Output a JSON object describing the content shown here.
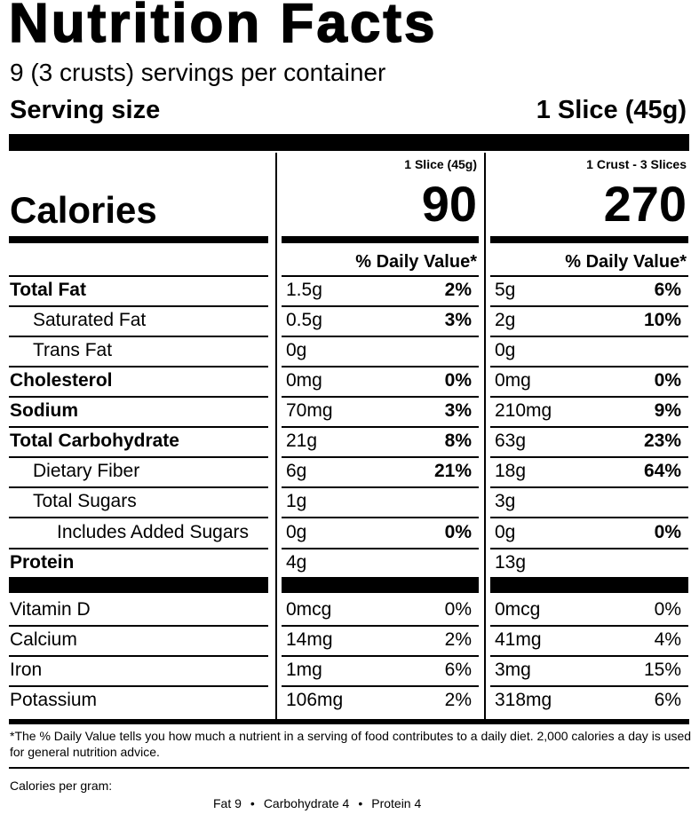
{
  "title": "Nutrition Facts",
  "servings_per_container": "9 (3 crusts) servings per container",
  "serving_size": {
    "label": "Serving size",
    "value": "1 Slice (45g)"
  },
  "calories": {
    "label": "Calories",
    "columns": [
      {
        "header": "1 Slice (45g)",
        "value": "90"
      },
      {
        "header": "1 Crust - 3 Slices",
        "value": "270"
      }
    ]
  },
  "daily_value_header": "% Daily Value*",
  "nutrients": [
    {
      "name": "Total Fat",
      "style": "bold",
      "c1_amt": "1.5g",
      "c1_pct": "2%",
      "c2_amt": "5g",
      "c2_pct": "6%"
    },
    {
      "name": "Saturated Fat",
      "style": "ind1",
      "c1_amt": "0.5g",
      "c1_pct": "3%",
      "c2_amt": "2g",
      "c2_pct": "10%"
    },
    {
      "name": "Trans Fat",
      "style": "ind1",
      "c1_amt": "0g",
      "c1_pct": "",
      "c2_amt": "0g",
      "c2_pct": ""
    },
    {
      "name": "Cholesterol",
      "style": "bold",
      "c1_amt": "0mg",
      "c1_pct": "0%",
      "c2_amt": "0mg",
      "c2_pct": "0%"
    },
    {
      "name": "Sodium",
      "style": "bold",
      "c1_amt": "70mg",
      "c1_pct": "3%",
      "c2_amt": "210mg",
      "c2_pct": "9%"
    },
    {
      "name": "Total Carbohydrate",
      "style": "bold",
      "c1_amt": "21g",
      "c1_pct": "8%",
      "c2_amt": "63g",
      "c2_pct": "23%"
    },
    {
      "name": "Dietary Fiber",
      "style": "ind1",
      "c1_amt": "6g",
      "c1_pct": "21%",
      "c2_amt": "18g",
      "c2_pct": "64%"
    },
    {
      "name": "Total Sugars",
      "style": "ind1",
      "c1_amt": "1g",
      "c1_pct": "",
      "c2_amt": "3g",
      "c2_pct": ""
    },
    {
      "name": "Includes Added Sugars",
      "style": "ind2",
      "c1_amt": "0g",
      "c1_pct": "0%",
      "c2_amt": "0g",
      "c2_pct": "0%"
    },
    {
      "name": "Protein",
      "style": "bold",
      "c1_amt": "4g",
      "c1_pct": "",
      "c2_amt": "13g",
      "c2_pct": ""
    }
  ],
  "vitamins": [
    {
      "name": "Vitamin D",
      "c1_amt": "0mcg",
      "c1_pct": "0%",
      "c2_amt": "0mcg",
      "c2_pct": "0%"
    },
    {
      "name": "Calcium",
      "c1_amt": "14mg",
      "c1_pct": "2%",
      "c2_amt": "41mg",
      "c2_pct": "4%"
    },
    {
      "name": "Iron",
      "c1_amt": "1mg",
      "c1_pct": "6%",
      "c2_amt": "3mg",
      "c2_pct": "15%"
    },
    {
      "name": "Potassium",
      "c1_amt": "106mg",
      "c1_pct": "2%",
      "c2_amt": "318mg",
      "c2_pct": "6%"
    }
  ],
  "footnote": "*The % Daily Value tells you how much a nutrient in a serving of food contributes to a daily diet. 2,000 calories a day is used for general nutrition advice.",
  "calories_per_gram": {
    "label": "Calories per gram:",
    "fat": "Fat 9",
    "carbohydrate": "Carbohydrate 4",
    "protein": "Protein 4",
    "separator": "•"
  }
}
